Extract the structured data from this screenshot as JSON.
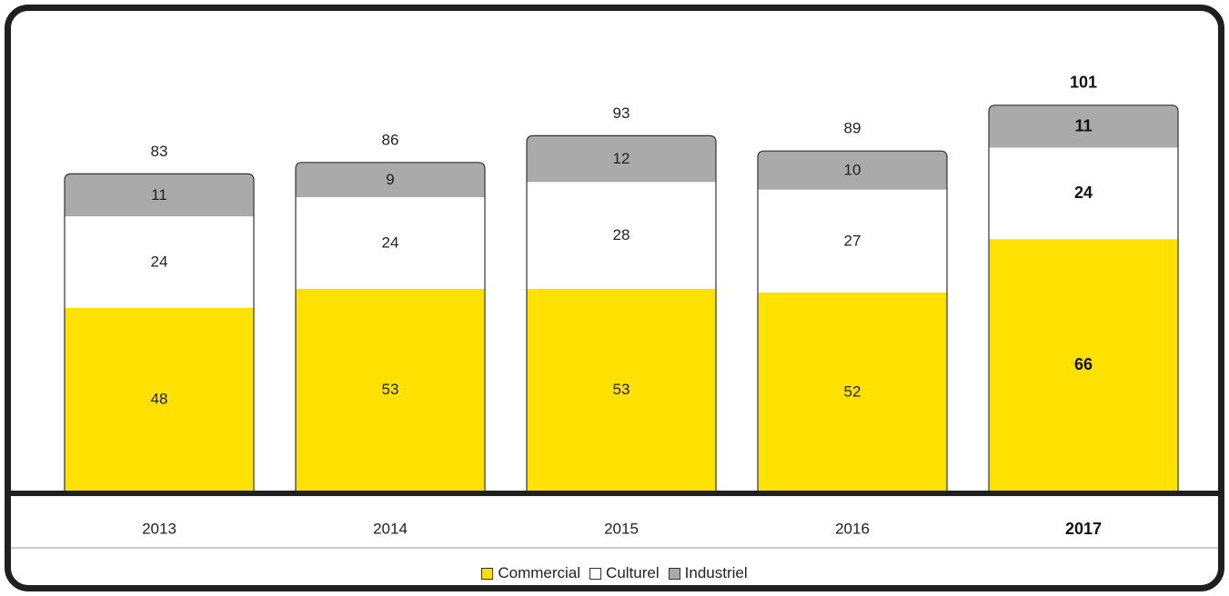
{
  "chart_data": {
    "type": "bar",
    "stacked": true,
    "categories": [
      "2013",
      "2014",
      "2015",
      "2016",
      "2017"
    ],
    "highlight_category": "2017",
    "series": [
      {
        "name": "Commercial",
        "values": [
          48,
          53,
          53,
          52,
          66
        ],
        "color": "#FFE100"
      },
      {
        "name": "Culturel",
        "values": [
          24,
          24,
          28,
          27,
          24
        ],
        "color": "#FFFFFF"
      },
      {
        "name": "Industriel",
        "values": [
          11,
          9,
          12,
          10,
          11
        ],
        "color": "#AAAAAA"
      }
    ],
    "totals": [
      83,
      86,
      93,
      89,
      101
    ],
    "legend_position": "bottom-center",
    "grid": false
  }
}
